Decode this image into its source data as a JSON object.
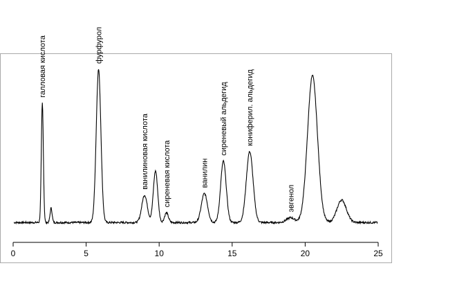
{
  "chart_data": {
    "type": "line",
    "title": "",
    "xlabel": "",
    "ylabel": "",
    "xlim": [
      0,
      25
    ],
    "x_ticks": [
      0,
      5,
      10,
      15,
      20,
      25
    ],
    "x_tick_labels": [
      "0",
      "5",
      "10",
      "15",
      "20",
      "25"
    ],
    "grid": false,
    "legend": "none",
    "colors": {
      "trace": "#000000",
      "frame": "#a9a9a9",
      "background": "#ffffff"
    },
    "baseline": 0.05,
    "peaks": [
      {
        "label": "галловая кислота",
        "x": 2.0,
        "y": 0.79
      },
      {
        "label": "",
        "x": 2.6,
        "y": 0.14
      },
      {
        "label": "фурфурол",
        "x": 5.85,
        "y": 1.0
      },
      {
        "label": "ванилиновая кислота",
        "x": 9.0,
        "y": 0.22
      },
      {
        "label": "",
        "x": 9.75,
        "y": 0.37
      },
      {
        "label": "сиреневая кислота",
        "x": 10.5,
        "y": 0.11
      },
      {
        "label": "ванилин",
        "x": 13.1,
        "y": 0.23
      },
      {
        "label": "сиреневый альдегид",
        "x": 14.4,
        "y": 0.43
      },
      {
        "label": "кониферил. альдегид",
        "x": 16.2,
        "y": 0.49
      },
      {
        "label": "эвгенол",
        "x": 19.0,
        "y": 0.08
      },
      {
        "label": "",
        "x": 20.5,
        "y": 0.96
      },
      {
        "label": "",
        "x": 22.5,
        "y": 0.19
      }
    ]
  }
}
